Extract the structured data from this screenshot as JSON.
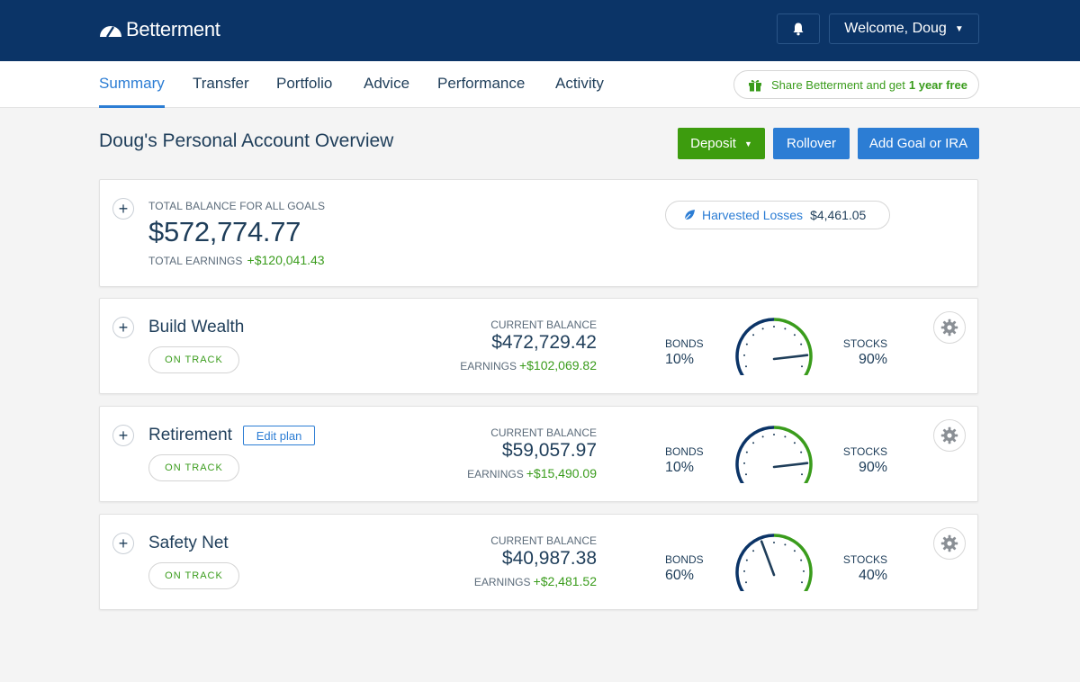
{
  "header": {
    "logo_text": "Betterment",
    "welcome_label": "Welcome, Doug",
    "caret": "▼"
  },
  "nav": {
    "tabs": [
      {
        "label": "Summary",
        "active": true
      },
      {
        "label": "Transfer",
        "active": false
      },
      {
        "label": "Portfolio",
        "active": false
      },
      {
        "label": "Advice",
        "active": false
      },
      {
        "label": "Performance",
        "active": false
      },
      {
        "label": "Activity",
        "active": false
      }
    ],
    "share_text": "Share Betterment and get",
    "share_bold": "1 year free"
  },
  "page": {
    "title": "Doug's Personal Account Overview",
    "deposit_label": "Deposit",
    "rollover_label": "Rollover",
    "add_goal_label": "Add Goal or IRA"
  },
  "summary": {
    "total_label": "TOTAL BALANCE FOR ALL GOALS",
    "total_balance": "$572,774.77",
    "earnings_label": "TOTAL EARNINGS",
    "earnings_value": "+$120,041.43",
    "harvested_label": "Harvested Losses",
    "harvested_value": "$4,461.05"
  },
  "goals": [
    {
      "name": "Build Wealth",
      "status": "ON TRACK",
      "balance_label": "CURRENT BALANCE",
      "balance": "$472,729.42",
      "earnings_label": "EARNINGS",
      "earnings": "+$102,069.82",
      "bonds_label": "BONDS",
      "bonds_pct": "10%",
      "stocks_label": "STOCKS",
      "stocks_pct": "90%",
      "stock_allocation": 90
    },
    {
      "name": "Retirement",
      "edit_label": "Edit plan",
      "status": "ON TRACK",
      "balance_label": "CURRENT BALANCE",
      "balance": "$59,057.97",
      "earnings_label": "EARNINGS",
      "earnings": "+$15,490.09",
      "bonds_label": "BONDS",
      "bonds_pct": "10%",
      "stocks_label": "STOCKS",
      "stocks_pct": "90%",
      "stock_allocation": 90
    },
    {
      "name": "Safety Net",
      "status": "ON TRACK",
      "balance_label": "CURRENT BALANCE",
      "balance": "$40,987.38",
      "earnings_label": "EARNINGS",
      "earnings": "+$2,481.52",
      "bonds_label": "BONDS",
      "bonds_pct": "60%",
      "stocks_label": "STOCKS",
      "stocks_pct": "40%",
      "stock_allocation": 40
    }
  ],
  "icons": {
    "logo": "betterment-logo-icon",
    "bell": "bell-icon",
    "gift": "gift-icon",
    "leaf": "leaf-icon",
    "plus": "plus-icon",
    "gear": "gear-icon"
  },
  "colors": {
    "header_bg": "#0b3467",
    "accent_blue": "#2c7dd4",
    "accent_green": "#3d9c0e",
    "text_navy": "#1f3e5a"
  }
}
